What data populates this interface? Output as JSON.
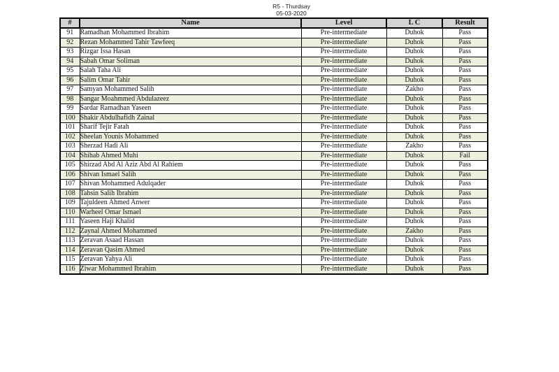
{
  "header": {
    "title_line1": "R5 - Thurdsay",
    "title_line2": "05-03-2020"
  },
  "colors": {
    "header_bg": "#d3d3d3",
    "alt_row_bg": "#ebf1de",
    "border": "#000000"
  },
  "table": {
    "columns": [
      "#",
      "Name",
      "Level",
      "L C",
      "Result"
    ],
    "rows": [
      {
        "num": "91",
        "name": "Ramadhan Mohammed Ibrahim",
        "level": "Pre-intermediate",
        "lc": "Duhok",
        "result": "Pass"
      },
      {
        "num": "92",
        "name": "Rezan Mohammed Tahir Tawfeeq",
        "level": "Pre-intermediate",
        "lc": "Duhok",
        "result": "Pass"
      },
      {
        "num": "93",
        "name": "Rizgar Issa Hasan",
        "level": "Pre-intermediate",
        "lc": "Duhok",
        "result": "Pass"
      },
      {
        "num": "94",
        "name": "Sabah Omar Soliman",
        "level": "Pre-intermediate",
        "lc": "Duhok",
        "result": "Pass"
      },
      {
        "num": "95",
        "name": "Salah Taha Ali",
        "level": "Pre-intermediate",
        "lc": "Duhok",
        "result": "Pass"
      },
      {
        "num": "96",
        "name": "Salim Omar Tahir",
        "level": "Pre-intermediate",
        "lc": "Duhok",
        "result": "Pass"
      },
      {
        "num": "97",
        "name": "Samyan Mohammed Salih",
        "level": "Pre-intermediate",
        "lc": "Zakho",
        "result": "Pass"
      },
      {
        "num": "98",
        "name": "Sangar Moahmmed Abdulazeez",
        "level": "Pre-intermediate",
        "lc": "Duhok",
        "result": "Pass"
      },
      {
        "num": "99",
        "name": "Sardar Ramadhan Yaseen",
        "level": "Pre-intermediate",
        "lc": "Duhok",
        "result": "Pass"
      },
      {
        "num": "100",
        "name": "Shakir Abdulhafidh Zainal",
        "level": "Pre-intermediate",
        "lc": "Duhok",
        "result": "Pass"
      },
      {
        "num": "101",
        "name": "Sharif Tejir Fatah",
        "level": "Pre-intermediate",
        "lc": "Duhok",
        "result": "Pass"
      },
      {
        "num": "102",
        "name": "Sheelan Younis Mohammed",
        "level": "Pre-intermediate",
        "lc": "Duhok",
        "result": "Pass"
      },
      {
        "num": "103",
        "name": "Sherzad Hadi Ali",
        "level": "Pre-intermediate",
        "lc": "Zakho",
        "result": "Pass"
      },
      {
        "num": "104",
        "name": "Shihab Ahmed Muhi",
        "level": "Pre-intermediate",
        "lc": "Duhok",
        "result": "Fail"
      },
      {
        "num": "105",
        "name": "Shirzad Abd Al Aziz Abd Al Rahiem",
        "level": "Pre-intermediate",
        "lc": "Duhok",
        "result": "Pass"
      },
      {
        "num": "106",
        "name": "Shivan Ismael Salih",
        "level": "Pre-intermediate",
        "lc": "Duhok",
        "result": "Pass"
      },
      {
        "num": "107",
        "name": "Shivan Mohammed Adulqader",
        "level": "Pre-intermediate",
        "lc": "Duhok",
        "result": "Pass"
      },
      {
        "num": "108",
        "name": "Tahsin Salih Ibrahim",
        "level": "Pre-intermediate",
        "lc": "Duhok",
        "result": "Pass"
      },
      {
        "num": "109",
        "name": "Tajuldeen Ahmed Anwer",
        "level": "Pre-intermediate",
        "lc": "Duhok",
        "result": "Pass"
      },
      {
        "num": "110",
        "name": "Warheel Omar Ismael",
        "level": "Pre-intermediate",
        "lc": "Duhok",
        "result": "Pass"
      },
      {
        "num": "111",
        "name": "Yaseen Haji Khalid",
        "level": "Pre-intermediate",
        "lc": "Duhok",
        "result": "Pass"
      },
      {
        "num": "112",
        "name": "Zaynal Ahmed Mohammed",
        "level": "Pre-intermediate",
        "lc": "Zakho",
        "result": "Pass"
      },
      {
        "num": "113",
        "name": "Zeravan Asaad Hassan",
        "level": "Pre-intermediate",
        "lc": "Duhok",
        "result": "Pass"
      },
      {
        "num": "114",
        "name": "Zeravan Qasim Ahmed",
        "level": "Pre-intermediate",
        "lc": "Duhok",
        "result": "Pass"
      },
      {
        "num": "115",
        "name": "Zeravan Yahya Ali",
        "level": "Pre-intermediate",
        "lc": "Duhok",
        "result": "Pass"
      },
      {
        "num": "116",
        "name": "Ziwar Mohammed Ibrahim",
        "level": "Pre-intermediate",
        "lc": "Duhok",
        "result": "Pass"
      }
    ]
  }
}
